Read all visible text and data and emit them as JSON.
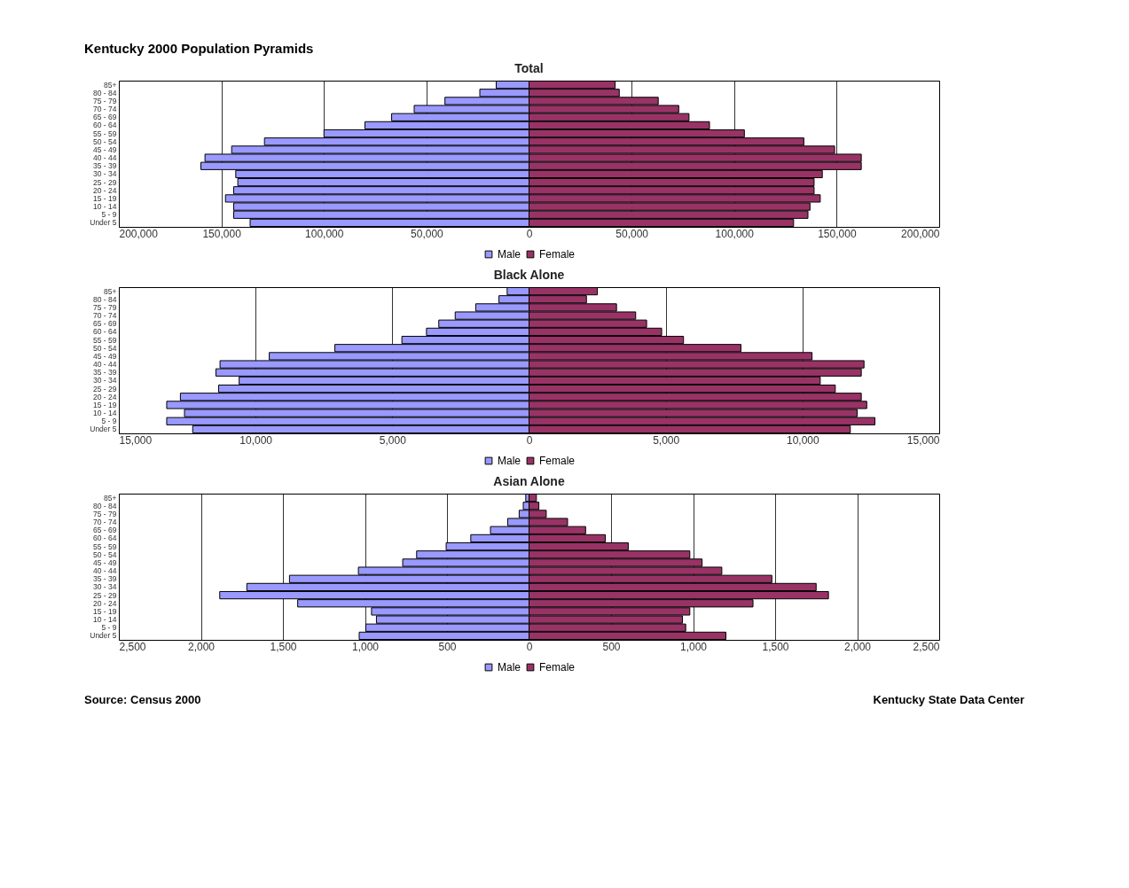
{
  "chart_data": [
    {
      "type": "bar",
      "orientation": "horizontal",
      "stacked": true,
      "title": "Kentucky 2000 Population Pyramids",
      "subtitle": "Total",
      "categories": [
        "85+",
        "80 - 84",
        "75 - 79",
        "70 - 74",
        "65 - 69",
        "60 - 64",
        "55 - 59",
        "50 - 54",
        "45 - 49",
        "40 - 44",
        "35 - 39",
        "30 - 34",
        "25 - 29",
        "20 - 24",
        "15 - 19",
        "10 - 14",
        "5 - 9",
        "Under 5"
      ],
      "series": [
        {
          "name": "Male",
          "color": "#9999ff",
          "values": [
            -16000,
            -24000,
            -41000,
            -56000,
            -67000,
            -80000,
            -100000,
            -129000,
            -145000,
            -158000,
            -160000,
            -143000,
            -142000,
            -144000,
            -148000,
            -144000,
            -144000,
            -136000
          ]
        },
        {
          "name": "Female",
          "color": "#993366",
          "values": [
            42000,
            44000,
            63000,
            73000,
            78000,
            88000,
            105000,
            134000,
            149000,
            162000,
            162000,
            143000,
            139000,
            139000,
            142000,
            137000,
            136000,
            129000
          ]
        }
      ],
      "xlim": [
        -200000,
        200000
      ],
      "xticks": [
        {
          "value": -200000,
          "label": "200,000"
        },
        {
          "value": -150000,
          "label": "150,000"
        },
        {
          "value": -100000,
          "label": "100,000"
        },
        {
          "value": -50000,
          "label": "50,000"
        },
        {
          "value": 0,
          "label": "0"
        },
        {
          "value": 50000,
          "label": "50,000"
        },
        {
          "value": 100000,
          "label": "100,000"
        },
        {
          "value": 150000,
          "label": "150,000"
        },
        {
          "value": 200000,
          "label": "200,000"
        }
      ],
      "grid": "x",
      "legend": "bottom"
    },
    {
      "type": "bar",
      "orientation": "horizontal",
      "stacked": true,
      "title": "Black Alone",
      "categories": [
        "85+",
        "80 - 84",
        "75 - 79",
        "70 - 74",
        "65 - 69",
        "60 - 64",
        "55 - 59",
        "50 - 54",
        "45 - 49",
        "40 - 44",
        "35 - 39",
        "30 - 34",
        "25 - 29",
        "20 - 24",
        "15 - 19",
        "10 - 14",
        "5 - 9",
        "Under 5"
      ],
      "series": [
        {
          "name": "Male",
          "color": "#9999ff",
          "values": [
            -800,
            -1100,
            -1950,
            -2700,
            -3300,
            -3750,
            -4650,
            -7100,
            -9500,
            -11300,
            -11450,
            -10600,
            -11350,
            -12750,
            -13250,
            -12600,
            -13250,
            -12300
          ]
        },
        {
          "name": "Female",
          "color": "#993366",
          "values": [
            2500,
            2100,
            3200,
            3900,
            4300,
            4850,
            5650,
            7750,
            10350,
            12250,
            12150,
            10650,
            11200,
            12150,
            12350,
            12000,
            12650,
            11750
          ]
        }
      ],
      "xlim": [
        -15000,
        15000
      ],
      "xticks": [
        {
          "value": -15000,
          "label": "15,000"
        },
        {
          "value": -10000,
          "label": "10,000"
        },
        {
          "value": -5000,
          "label": "5,000"
        },
        {
          "value": 0,
          "label": "0"
        },
        {
          "value": 5000,
          "label": "5,000"
        },
        {
          "value": 10000,
          "label": "10,000"
        },
        {
          "value": 15000,
          "label": "15,000"
        }
      ],
      "grid": "x",
      "legend": "bottom"
    },
    {
      "type": "bar",
      "orientation": "horizontal",
      "stacked": true,
      "title": "Asian Alone",
      "categories": [
        "85+",
        "80 - 84",
        "75 - 79",
        "70 - 74",
        "65 - 69",
        "60 - 64",
        "55 - 59",
        "50 - 54",
        "45 - 49",
        "40 - 44",
        "35 - 39",
        "30 - 34",
        "25 - 29",
        "20 - 24",
        "15 - 19",
        "10 - 14",
        "5 - 9",
        "Under 5"
      ],
      "series": [
        {
          "name": "Male",
          "color": "#9999ff",
          "values": [
            -20,
            -35,
            -60,
            -130,
            -235,
            -355,
            -505,
            -685,
            -770,
            -1040,
            -1460,
            -1720,
            -1885,
            -1410,
            -960,
            -930,
            -995,
            -1035
          ]
        },
        {
          "name": "Female",
          "color": "#993366",
          "values": [
            45,
            60,
            105,
            235,
            345,
            465,
            605,
            980,
            1055,
            1175,
            1480,
            1750,
            1825,
            1365,
            980,
            935,
            955,
            1200
          ]
        }
      ],
      "xlim": [
        -2500,
        2500
      ],
      "xticks": [
        {
          "value": -2500,
          "label": "2,500"
        },
        {
          "value": -2000,
          "label": "2,000"
        },
        {
          "value": -1500,
          "label": "1,500"
        },
        {
          "value": -1000,
          "label": "1,000"
        },
        {
          "value": -500,
          "label": "500"
        },
        {
          "value": 0,
          "label": "0"
        },
        {
          "value": 500,
          "label": "500"
        },
        {
          "value": 1000,
          "label": "1,000"
        },
        {
          "value": 1500,
          "label": "1,500"
        },
        {
          "value": 2000,
          "label": "2,000"
        },
        {
          "value": 2500,
          "label": "2,500"
        }
      ],
      "grid": "x",
      "legend": "bottom",
      "annotations": [
        "Source: Census 2000",
        "Kentucky State Data Center"
      ]
    }
  ]
}
